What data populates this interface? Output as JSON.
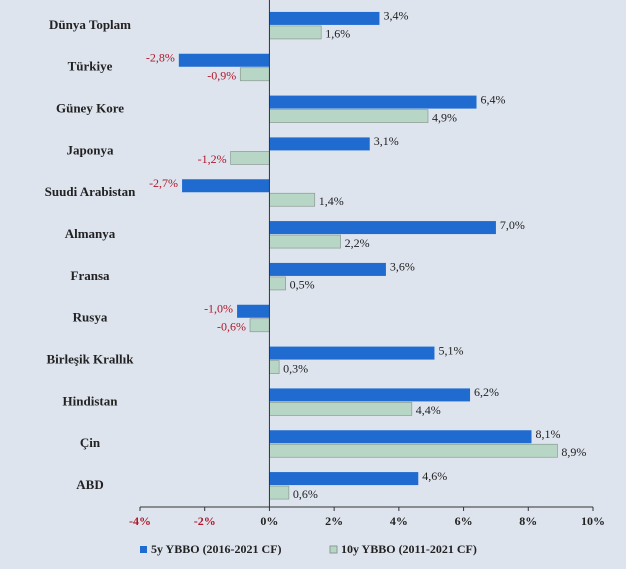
{
  "chart_data": {
    "type": "bar",
    "orientation": "horizontal",
    "categories": [
      "Dünya Toplam",
      "Türkiye",
      "Güney Kore",
      "Japonya",
      "Suudi Arabistan",
      "Almanya",
      "Fransa",
      "Rusya",
      "Birleşik Krallık",
      "Hindistan",
      "Çin",
      "ABD"
    ],
    "series": [
      {
        "name": "5y YBBO (2016-2021 CF)",
        "color": "#1f6bd0",
        "values": [
          3.4,
          -2.8,
          6.4,
          3.1,
          -2.7,
          7.0,
          3.6,
          -1.0,
          5.1,
          6.2,
          8.1,
          4.6
        ],
        "value_labels": [
          "3,4%",
          "-2,8%",
          "6,4%",
          "3,1%",
          "-2,7%",
          "7,0%",
          "3,6%",
          "-1,0%",
          "5,1%",
          "6,2%",
          "8,1%",
          "4,6%"
        ]
      },
      {
        "name": "10y YBBO (2011-2021 CF)",
        "color": "#b8d6c6",
        "values": [
          1.6,
          -0.9,
          4.9,
          -1.2,
          1.4,
          2.2,
          0.5,
          -0.6,
          0.3,
          4.4,
          8.9,
          0.6
        ],
        "value_labels": [
          "1,6%",
          "-0,9%",
          "4,9%",
          "-1,2%",
          "1,4%",
          "2,2%",
          "0,5%",
          "-0,6%",
          "0,3%",
          "4,4%",
          "8,9%",
          "0,6%"
        ]
      }
    ],
    "xlim": [
      -4,
      10
    ],
    "xticks": [
      {
        "value": -4,
        "label": "-4%"
      },
      {
        "value": -2,
        "label": "-2%"
      },
      {
        "value": 0,
        "label": "0%"
      },
      {
        "value": 2,
        "label": "2%"
      },
      {
        "value": 4,
        "label": "4%"
      },
      {
        "value": 6,
        "label": "6%"
      },
      {
        "value": 8,
        "label": "8%"
      },
      {
        "value": 10,
        "label": "10%"
      }
    ],
    "legend": "bottom"
  }
}
